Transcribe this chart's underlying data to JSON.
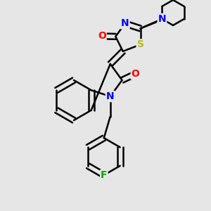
{
  "bg_color": "#e6e6e6",
  "bond_color": "#000000",
  "bond_width": 1.8,
  "atom_colors": {
    "N": "#0000ff",
    "O": "#ff0000",
    "S": "#bbbb00",
    "F": "#00aa00",
    "C": "#000000"
  },
  "font_size": 10
}
